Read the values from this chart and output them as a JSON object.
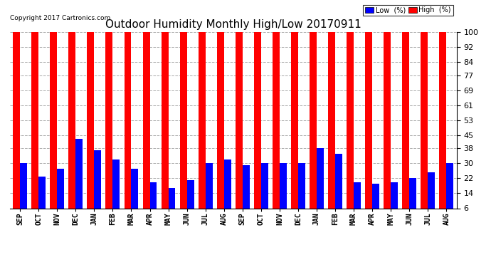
{
  "title": "Outdoor Humidity Monthly High/Low 20170911",
  "copyright": "Copyright 2017 Cartronics.com",
  "categories": [
    "SEP",
    "OCT",
    "NOV",
    "DEC",
    "JAN",
    "FEB",
    "MAR",
    "APR",
    "MAY",
    "JUN",
    "JUL",
    "AUG",
    "SEP",
    "OCT",
    "NOV",
    "DEC",
    "JAN",
    "FEB",
    "MAR",
    "APR",
    "MAY",
    "JUN",
    "JUL",
    "AUG"
  ],
  "high_values": [
    100,
    100,
    100,
    100,
    100,
    100,
    100,
    100,
    100,
    100,
    100,
    100,
    100,
    100,
    100,
    100,
    100,
    100,
    100,
    100,
    100,
    100,
    100,
    100
  ],
  "low_values": [
    30,
    23,
    27,
    43,
    37,
    32,
    27,
    20,
    17,
    21,
    30,
    32,
    29,
    30,
    30,
    30,
    38,
    35,
    20,
    19,
    20,
    22,
    25,
    30
  ],
  "high_color": "#ff0000",
  "low_color": "#0000ff",
  "bg_color": "#ffffff",
  "yticks": [
    6,
    14,
    22,
    30,
    38,
    45,
    53,
    61,
    69,
    77,
    84,
    92,
    100
  ],
  "ylim": [
    6,
    100
  ],
  "grid_color": "#aaaaaa",
  "title_fontsize": 11,
  "bar_width": 0.38,
  "legend_low_label": "Low  (%)",
  "legend_high_label": "High  (%)"
}
